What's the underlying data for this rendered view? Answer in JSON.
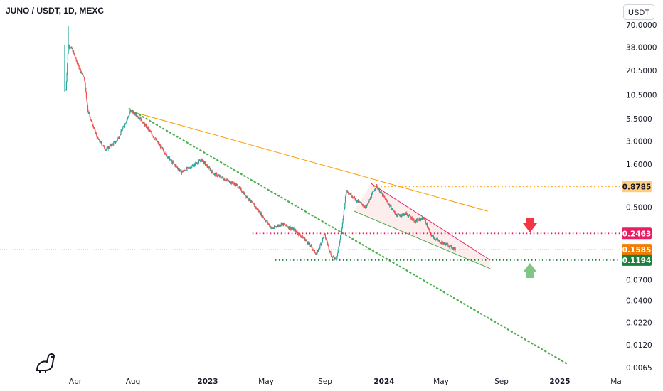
{
  "header": {
    "title": "JUNO / USDT, 1D, MEXC",
    "currency_button": "USDT"
  },
  "colors": {
    "up": "#26a69a",
    "down": "#ef5350",
    "green_line": "#4caf50",
    "orange": "#ff9800",
    "resistance": "#e91e63",
    "support": "#1b7f3b",
    "arrow_down": "#f23645",
    "arrow_up": "#81c784"
  },
  "chart_data": {
    "type": "candlestick",
    "scale": "log",
    "yticks": [
      "70.0000",
      "38.0000",
      "20.5000",
      "10.5000",
      "5.5000",
      "3.0000",
      "1.6000",
      "0.5000",
      "0.0700",
      "0.0400",
      "0.0220",
      "0.0120",
      "0.0065"
    ],
    "xticks": [
      {
        "label": "Apr",
        "bold": false
      },
      {
        "label": "Aug",
        "bold": false
      },
      {
        "label": "2023",
        "bold": true
      },
      {
        "label": "May",
        "bold": false
      },
      {
        "label": "Sep",
        "bold": false
      },
      {
        "label": "2024",
        "bold": true
      },
      {
        "label": "May",
        "bold": false
      },
      {
        "label": "Sep",
        "bold": false
      },
      {
        "label": "2025",
        "bold": true
      },
      {
        "label": "Ma",
        "bold": false
      }
    ],
    "price_path": [
      [
        "2022-03-28",
        12.0
      ],
      [
        "2022-04-02",
        40.0
      ],
      [
        "2022-04-10",
        36.0
      ],
      [
        "2022-04-20",
        25.0
      ],
      [
        "2022-05-05",
        16.0
      ],
      [
        "2022-05-12",
        7.0
      ],
      [
        "2022-05-20",
        5.0
      ],
      [
        "2022-06-01",
        3.2
      ],
      [
        "2022-06-18",
        2.4
      ],
      [
        "2022-07-10",
        3.0
      ],
      [
        "2022-07-25",
        4.5
      ],
      [
        "2022-08-08",
        6.8
      ],
      [
        "2022-08-25",
        5.8
      ],
      [
        "2022-09-15",
        4.0
      ],
      [
        "2022-10-10",
        2.5
      ],
      [
        "2022-11-01",
        1.7
      ],
      [
        "2022-11-20",
        1.3
      ],
      [
        "2022-12-10",
        1.5
      ],
      [
        "2023-01-01",
        1.8
      ],
      [
        "2023-01-25",
        1.25
      ],
      [
        "2023-02-20",
        1.05
      ],
      [
        "2023-03-15",
        0.9
      ],
      [
        "2023-04-10",
        0.6
      ],
      [
        "2023-05-05",
        0.4
      ],
      [
        "2023-05-25",
        0.28
      ],
      [
        "2023-06-15",
        0.32
      ],
      [
        "2023-07-10",
        0.27
      ],
      [
        "2023-08-05",
        0.2
      ],
      [
        "2023-08-25",
        0.14
      ],
      [
        "2023-09-10",
        0.24
      ],
      [
        "2023-09-25",
        0.13
      ],
      [
        "2023-10-05",
        0.125
      ],
      [
        "2023-10-15",
        0.26
      ],
      [
        "2023-10-25",
        0.8
      ],
      [
        "2023-11-15",
        0.6
      ],
      [
        "2023-12-05",
        0.5
      ],
      [
        "2023-12-25",
        0.9
      ],
      [
        "2024-01-15",
        0.6
      ],
      [
        "2024-02-05",
        0.4
      ],
      [
        "2024-02-25",
        0.42
      ],
      [
        "2024-03-15",
        0.34
      ],
      [
        "2024-04-01",
        0.38
      ],
      [
        "2024-04-15",
        0.24
      ],
      [
        "2024-05-01",
        0.2
      ],
      [
        "2024-05-20",
        0.18
      ],
      [
        "2024-06-05",
        0.16
      ]
    ],
    "lines": [
      {
        "name": "orange-trendline",
        "from": [
          "2022-08-05",
          6.8
        ],
        "to": [
          "2024-08-10",
          0.45
        ],
        "style": "solid",
        "color": "orange"
      },
      {
        "name": "green-dotted-trendline",
        "from": [
          "2022-08-05",
          7.2
        ],
        "to": [
          "2025-01-20",
          0.0072
        ],
        "style": "dotted",
        "color": "green_line"
      },
      {
        "name": "channel-upper",
        "from": [
          "2023-12-15",
          0.95
        ],
        "to": [
          "2024-08-15",
          0.12
        ],
        "style": "solid",
        "color": "resistance"
      },
      {
        "name": "channel-lower",
        "from": [
          "2023-11-10",
          0.45
        ],
        "to": [
          "2024-08-15",
          0.095
        ],
        "style": "solid",
        "color": "green_line"
      }
    ],
    "levels": [
      {
        "name": "level-08785",
        "value": 0.8785,
        "label": "0.8785",
        "from": "2023-12-20",
        "color": "#ff9800",
        "tag_bg": "#ffcc80",
        "tag_fg": "#131722",
        "style": "dotted"
      },
      {
        "name": "level-02463",
        "value": 0.2463,
        "label": "0.2463",
        "from": "2023-04-15",
        "color": "#e91e63",
        "tag_bg": "#e91e63",
        "tag_fg": "#ffffff",
        "style": "dotted"
      },
      {
        "name": "level-01585",
        "value": 0.1585,
        "label": "0.1585",
        "from": "start",
        "color": "#ff9800",
        "tag_bg": "#f57c00",
        "tag_fg": "#ffffff",
        "style": "dotted-fine"
      },
      {
        "name": "level-01194",
        "value": 0.1194,
        "label": "0.1194",
        "from": "2023-06-01",
        "color": "#1b7f3b",
        "tag_bg": "#1b7f3b",
        "tag_fg": "#ffffff",
        "style": "dotted"
      }
    ]
  }
}
